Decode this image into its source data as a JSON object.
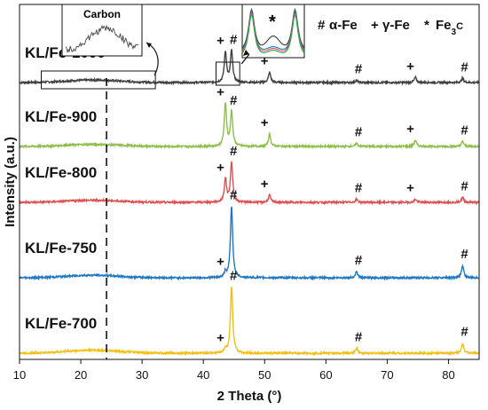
{
  "chart_data": {
    "type": "line",
    "xlabel": "2 Theta (°)",
    "ylabel": "Intensity (a.u.)",
    "xlim": [
      10,
      85
    ],
    "xticks": [
      10,
      20,
      30,
      40,
      50,
      60,
      70,
      80
    ],
    "grid": false,
    "legend": [
      {
        "symbol": "#",
        "text": "α-Fe"
      },
      {
        "symbol": "+",
        "text": "γ-Fe"
      },
      {
        "symbol": "*",
        "text": "Fe",
        "subscript": "3",
        "suffix": "C"
      }
    ],
    "dashed_line_x": 24.2,
    "inset_carbon": {
      "title": "Carbon",
      "x_range": [
        15,
        30
      ]
    },
    "inset_zoom": {
      "x_range": [
        42.5,
        45.5
      ],
      "marker": "*"
    },
    "series": [
      {
        "name": "KL/Fe-1000",
        "color": "#404040",
        "broad_hump": {
          "center": 22,
          "height": 0.25
        },
        "peaks": [
          {
            "x": 43.6,
            "h": 3.0,
            "marker": "+"
          },
          {
            "x": 44.6,
            "h": 3.1,
            "marker": "#"
          },
          {
            "x": 50.8,
            "h": 1.0,
            "marker": "+"
          },
          {
            "x": 65.0,
            "h": 0.2,
            "marker": "#"
          },
          {
            "x": 74.6,
            "h": 0.5,
            "marker": "+"
          },
          {
            "x": 82.3,
            "h": 0.4,
            "marker": "#"
          }
        ]
      },
      {
        "name": "KL/Fe-900",
        "color": "#8fbf4a",
        "broad_hump": {
          "center": 22,
          "height": 0.2
        },
        "peaks": [
          {
            "x": 43.6,
            "h": 4.2,
            "marker": "+"
          },
          {
            "x": 44.6,
            "h": 3.4,
            "marker": "#"
          },
          {
            "x": 50.8,
            "h": 1.2,
            "marker": "+"
          },
          {
            "x": 65.0,
            "h": 0.3,
            "marker": "#"
          },
          {
            "x": 74.6,
            "h": 0.6,
            "marker": "+"
          },
          {
            "x": 82.3,
            "h": 0.5,
            "marker": "#"
          }
        ]
      },
      {
        "name": "KL/Fe-800",
        "color": "#e05050",
        "broad_hump": {
          "center": 22,
          "height": 0.2
        },
        "peaks": [
          {
            "x": 43.6,
            "h": 2.3,
            "marker": "+"
          },
          {
            "x": 44.6,
            "h": 3.9,
            "marker": "#"
          },
          {
            "x": 50.8,
            "h": 0.7,
            "marker": "+"
          },
          {
            "x": 65.0,
            "h": 0.3,
            "marker": "#"
          },
          {
            "x": 74.6,
            "h": 0.3,
            "marker": "+"
          },
          {
            "x": 82.3,
            "h": 0.5,
            "marker": "#"
          }
        ]
      },
      {
        "name": "KL/Fe-750",
        "color": "#1f77c4",
        "broad_hump": {
          "center": 22,
          "height": 0.25
        },
        "peaks": [
          {
            "x": 43.6,
            "h": 0.5,
            "marker": "+"
          },
          {
            "x": 44.6,
            "h": 7.0,
            "marker": "#"
          },
          {
            "x": 65.0,
            "h": 0.6,
            "marker": "#"
          },
          {
            "x": 82.3,
            "h": 1.2,
            "marker": "#"
          }
        ]
      },
      {
        "name": "KL/Fe-700",
        "color": "#f2c012",
        "broad_hump": {
          "center": 22,
          "height": 0.3
        },
        "peaks": [
          {
            "x": 43.6,
            "h": 0.4,
            "marker": "+"
          },
          {
            "x": 44.6,
            "h": 6.5,
            "marker": "#"
          },
          {
            "x": 65.0,
            "h": 0.5,
            "marker": "#"
          },
          {
            "x": 82.3,
            "h": 1.0,
            "marker": "#"
          }
        ]
      }
    ]
  }
}
